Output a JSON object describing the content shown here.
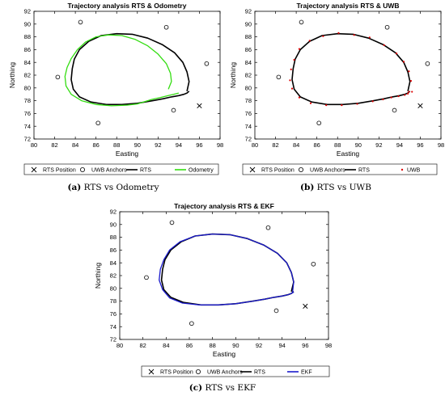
{
  "figure": {
    "colors": {
      "rts": "#000000",
      "odometry": "#33dd11",
      "uwb": "#dd0000",
      "ekf": "#1a1acc",
      "anchor": "#000000",
      "axis": "#000000",
      "grid": "#e6e6e6"
    },
    "captions": [
      {
        "letter": "(a)",
        "text": "RTS vs Odometry"
      },
      {
        "letter": "(b)",
        "text": "RTS vs UWB"
      },
      {
        "letter": "(c)",
        "text": "RTS vs EKF"
      }
    ]
  },
  "chart_data": [
    {
      "type": "line",
      "title": "Trajectory analysis RTS & Odometry",
      "xlabel": "Easting",
      "ylabel": "Northing",
      "xlim": [
        80,
        98
      ],
      "ylim": [
        72,
        92
      ],
      "xticks": [
        80,
        82,
        84,
        86,
        88,
        90,
        92,
        94,
        96,
        98
      ],
      "yticks": [
        72,
        74,
        76,
        78,
        80,
        82,
        84,
        86,
        88,
        90,
        92
      ],
      "grid": false,
      "legend_position": "below",
      "rts_position": {
        "name": "RTS Position",
        "x": 96.0,
        "y": 77.2
      },
      "anchors": {
        "name": "UWB Anchors",
        "x": [
          84.5,
          92.8,
          96.7,
          82.3,
          86.2,
          93.5
        ],
        "y": [
          90.3,
          89.5,
          83.8,
          81.7,
          74.5,
          76.5
        ]
      },
      "series": [
        {
          "name": "RTS",
          "style": "line",
          "color": "#000000",
          "x": [
            94.8,
            95.0,
            94.8,
            94.4,
            93.6,
            92.4,
            91.0,
            89.5,
            88.0,
            86.5,
            85.3,
            84.4,
            83.9,
            83.7,
            83.6,
            83.8,
            84.4,
            85.5,
            87.0,
            88.5,
            90.0,
            91.5,
            92.5,
            93.3,
            94.0,
            94.5,
            94.8,
            95.0
          ],
          "y": [
            79.5,
            81.0,
            82.5,
            84.0,
            85.5,
            86.8,
            87.8,
            88.4,
            88.5,
            88.2,
            87.3,
            86.0,
            84.5,
            83.0,
            81.3,
            79.8,
            78.6,
            77.8,
            77.4,
            77.4,
            77.6,
            78.0,
            78.3,
            78.6,
            78.8,
            79.0,
            79.2,
            79.5
          ]
        },
        {
          "name": "Odometry",
          "style": "line",
          "color": "#33dd11",
          "x": [
            93.0,
            93.3,
            93.2,
            92.8,
            92.0,
            91.0,
            89.8,
            88.5,
            87.2,
            86.0,
            85.0,
            84.2,
            83.6,
            83.2,
            83.0,
            83.1,
            83.6,
            84.6,
            86.0,
            87.5,
            89.0,
            90.0,
            90.6,
            91.4,
            92.2,
            93.0,
            93.5,
            94.0
          ],
          "y": [
            79.8,
            81.0,
            82.3,
            83.8,
            85.3,
            86.6,
            87.6,
            88.2,
            88.3,
            88.0,
            87.2,
            86.0,
            84.6,
            83.2,
            81.8,
            80.3,
            79.0,
            78.0,
            77.4,
            77.2,
            77.3,
            77.5,
            77.8,
            78.2,
            78.5,
            78.8,
            79.0,
            79.2
          ]
        }
      ]
    },
    {
      "type": "scatter",
      "title": "Trajectory analysis RTS & UWB",
      "xlabel": "Easting",
      "ylabel": "Northing",
      "xlim": [
        80,
        98
      ],
      "ylim": [
        72,
        92
      ],
      "xticks": [
        80,
        82,
        84,
        86,
        88,
        90,
        92,
        94,
        96,
        98
      ],
      "yticks": [
        72,
        74,
        76,
        78,
        80,
        82,
        84,
        86,
        88,
        90,
        92
      ],
      "grid": false,
      "legend_position": "below",
      "rts_position": {
        "name": "RTS Position",
        "x": 96.0,
        "y": 77.2
      },
      "anchors": {
        "name": "UWB Anchors",
        "x": [
          84.5,
          92.8,
          96.7,
          82.3,
          86.2,
          93.5
        ],
        "y": [
          90.3,
          89.5,
          83.8,
          81.7,
          74.5,
          76.5
        ]
      },
      "series": [
        {
          "name": "RTS",
          "style": "line",
          "color": "#000000",
          "x": [
            94.8,
            95.0,
            94.8,
            94.4,
            93.6,
            92.4,
            91.0,
            89.5,
            88.0,
            86.5,
            85.3,
            84.4,
            83.9,
            83.7,
            83.6,
            83.8,
            84.4,
            85.5,
            87.0,
            88.5,
            90.0,
            91.5,
            92.5,
            93.3,
            94.0,
            94.5,
            94.8,
            95.0
          ],
          "y": [
            79.5,
            81.0,
            82.5,
            84.0,
            85.5,
            86.8,
            87.8,
            88.4,
            88.5,
            88.2,
            87.3,
            86.0,
            84.5,
            83.0,
            81.3,
            79.8,
            78.6,
            77.8,
            77.4,
            77.4,
            77.6,
            78.0,
            78.3,
            78.6,
            78.8,
            79.0,
            79.2,
            79.5
          ]
        },
        {
          "name": "UWB",
          "style": "points",
          "color": "#dd0000",
          "x": [
            94.9,
            95.1,
            94.9,
            94.4,
            93.7,
            92.5,
            91.1,
            89.6,
            88.1,
            86.6,
            85.3,
            84.3,
            83.8,
            83.5,
            83.4,
            83.6,
            84.3,
            85.4,
            86.9,
            88.4,
            89.9,
            91.4,
            92.4,
            93.2,
            93.9,
            94.5,
            94.8,
            95.2
          ],
          "y": [
            79.4,
            81.1,
            82.6,
            84.1,
            85.4,
            86.7,
            87.9,
            88.3,
            88.6,
            88.1,
            87.4,
            86.1,
            84.4,
            82.9,
            81.2,
            79.9,
            78.5,
            77.6,
            77.3,
            77.3,
            77.5,
            77.9,
            78.2,
            78.5,
            78.7,
            78.9,
            79.1,
            79.4
          ]
        }
      ]
    },
    {
      "type": "line",
      "title": "Trajectory analysis RTS & EKF",
      "xlabel": "Easting",
      "ylabel": "Northing",
      "xlim": [
        80,
        98
      ],
      "ylim": [
        72,
        92
      ],
      "xticks": [
        80,
        82,
        84,
        86,
        88,
        90,
        92,
        94,
        96,
        98
      ],
      "yticks": [
        72,
        74,
        76,
        78,
        80,
        82,
        84,
        86,
        88,
        90,
        92
      ],
      "grid": false,
      "legend_position": "below",
      "rts_position": {
        "name": "RTS Position",
        "x": 96.0,
        "y": 77.2
      },
      "anchors": {
        "name": "UWB Anchors",
        "x": [
          84.5,
          92.8,
          96.7,
          82.3,
          86.2,
          93.5
        ],
        "y": [
          90.3,
          89.5,
          83.8,
          81.7,
          74.5,
          76.5
        ]
      },
      "series": [
        {
          "name": "RTS",
          "style": "line",
          "color": "#000000",
          "x": [
            94.8,
            95.0,
            94.8,
            94.4,
            93.6,
            92.4,
            91.0,
            89.5,
            88.0,
            86.5,
            85.3,
            84.4,
            83.9,
            83.7,
            83.6,
            83.8,
            84.4,
            85.5,
            87.0,
            88.5,
            90.0,
            91.5,
            92.5,
            93.3,
            94.0,
            94.5,
            94.8,
            95.0
          ],
          "y": [
            79.5,
            81.0,
            82.5,
            84.0,
            85.5,
            86.8,
            87.8,
            88.4,
            88.5,
            88.2,
            87.3,
            86.0,
            84.5,
            83.0,
            81.3,
            79.8,
            78.6,
            77.8,
            77.4,
            77.4,
            77.6,
            78.0,
            78.3,
            78.6,
            78.8,
            79.0,
            79.2,
            79.5
          ]
        },
        {
          "name": "EKF",
          "style": "line",
          "color": "#1a1acc",
          "x": [
            94.9,
            95.0,
            94.8,
            94.4,
            93.6,
            92.4,
            91.0,
            89.5,
            88.0,
            86.5,
            85.2,
            84.3,
            83.8,
            83.5,
            83.4,
            83.7,
            84.3,
            85.4,
            86.9,
            88.5,
            90.0,
            91.5,
            92.5,
            93.3,
            94.0,
            94.5,
            94.8,
            95.0
          ],
          "y": [
            79.4,
            81.0,
            82.5,
            84.0,
            85.5,
            86.8,
            87.8,
            88.4,
            88.5,
            88.2,
            87.3,
            86.0,
            84.5,
            83.0,
            81.3,
            79.8,
            78.5,
            77.7,
            77.4,
            77.4,
            77.6,
            78.0,
            78.3,
            78.6,
            78.8,
            79.0,
            79.2,
            79.4
          ]
        }
      ]
    }
  ]
}
